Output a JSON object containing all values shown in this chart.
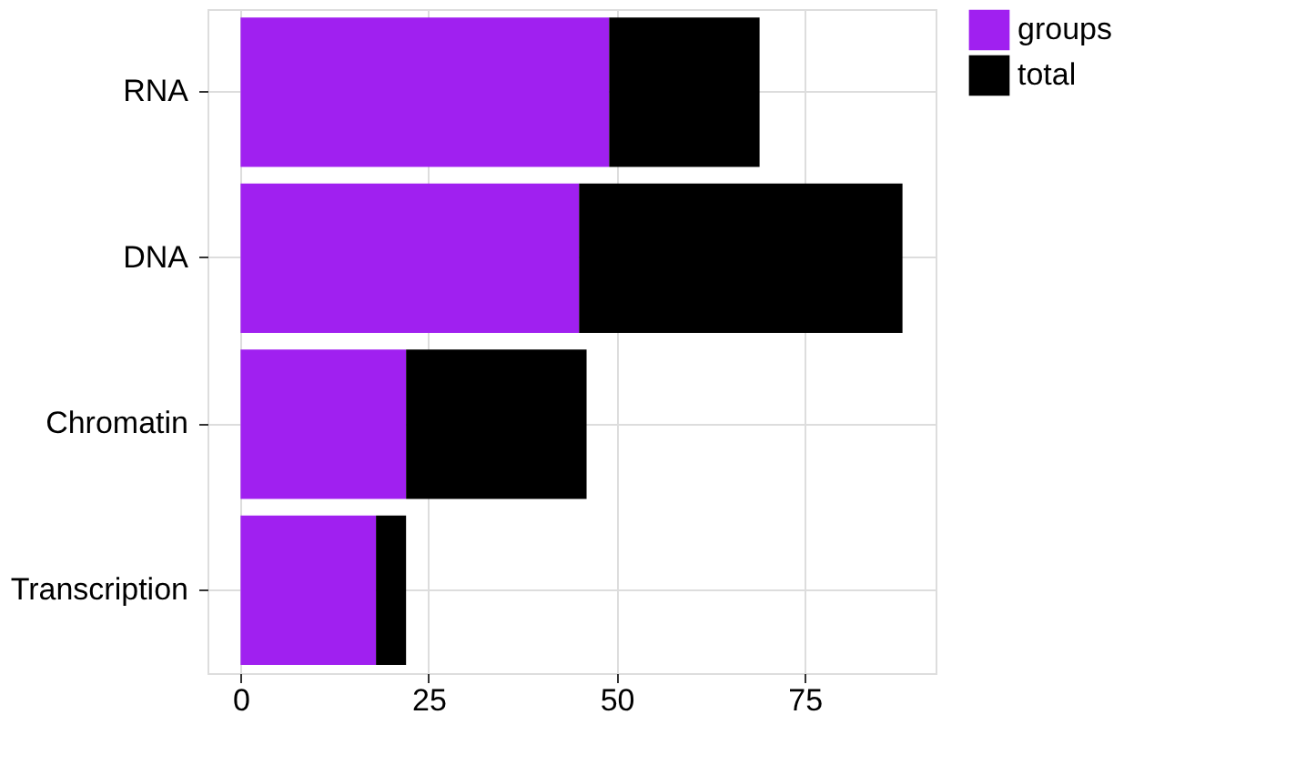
{
  "chart_data": {
    "type": "bar",
    "orientation": "horizontal",
    "stacked": true,
    "categories": [
      "RNA",
      "DNA",
      "Chromatin",
      "Transcription"
    ],
    "series": [
      {
        "name": "groups",
        "color": "#a020f0",
        "values": [
          49,
          45,
          22,
          18
        ]
      },
      {
        "name": "total",
        "color": "#000000",
        "values": [
          20,
          43,
          24,
          4
        ]
      }
    ],
    "xlim": [
      -4.4,
      92.4
    ],
    "xticks": [
      0,
      25,
      50,
      75
    ],
    "grid": true,
    "legend": "right"
  }
}
